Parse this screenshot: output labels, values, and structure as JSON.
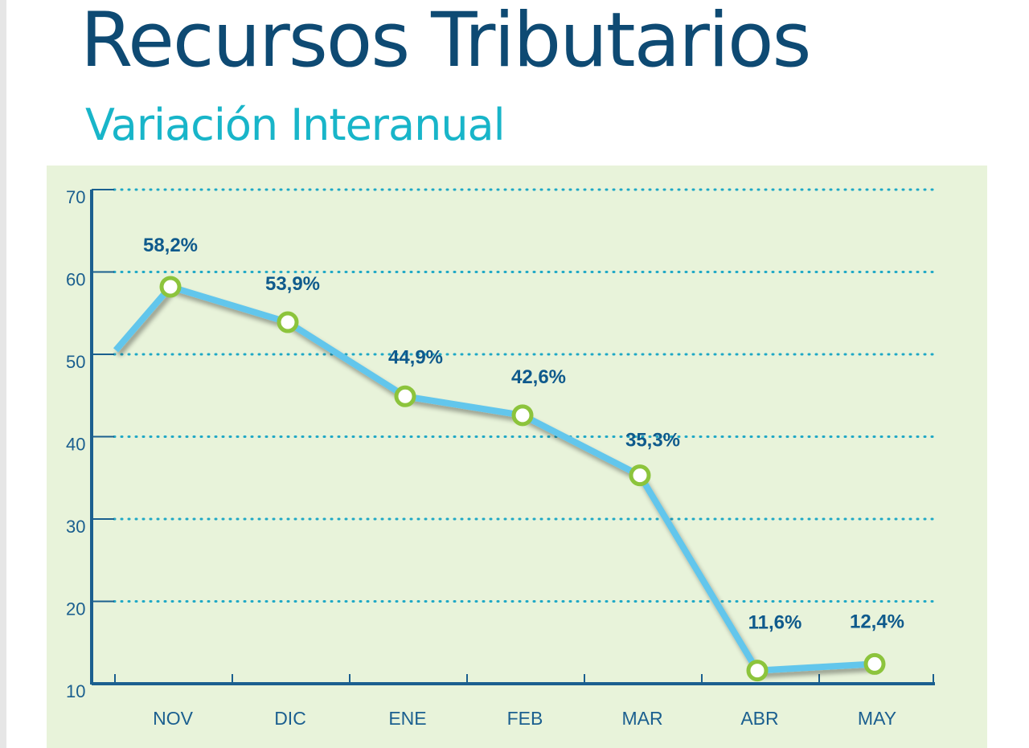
{
  "chart_data": {
    "type": "line",
    "title": "Recursos Tributarios",
    "subtitle": "Variación Interanual",
    "categories": [
      "NOV",
      "DIC",
      "ENE",
      "FEB",
      "MAR",
      "ABR",
      "MAY"
    ],
    "series": [
      {
        "values": [
          58.2,
          53.9,
          44.9,
          42.6,
          35.3,
          11.6,
          12.4
        ],
        "labels": [
          "58,2%",
          "53,9%",
          "44,9%",
          "42,6%",
          "35,3%",
          "11,6%",
          "12,4%"
        ]
      }
    ],
    "prior_value": 50.5,
    "y_ticks": [
      10,
      20,
      30,
      40,
      50,
      60,
      70
    ],
    "ylim": [
      10,
      70
    ],
    "grid": true,
    "colors": {
      "background": "#e8f3da",
      "line": "#62c6ec",
      "marker": "#8cc43c",
      "axis": "#1b5f8f",
      "grid": "#1fa8c6"
    }
  }
}
